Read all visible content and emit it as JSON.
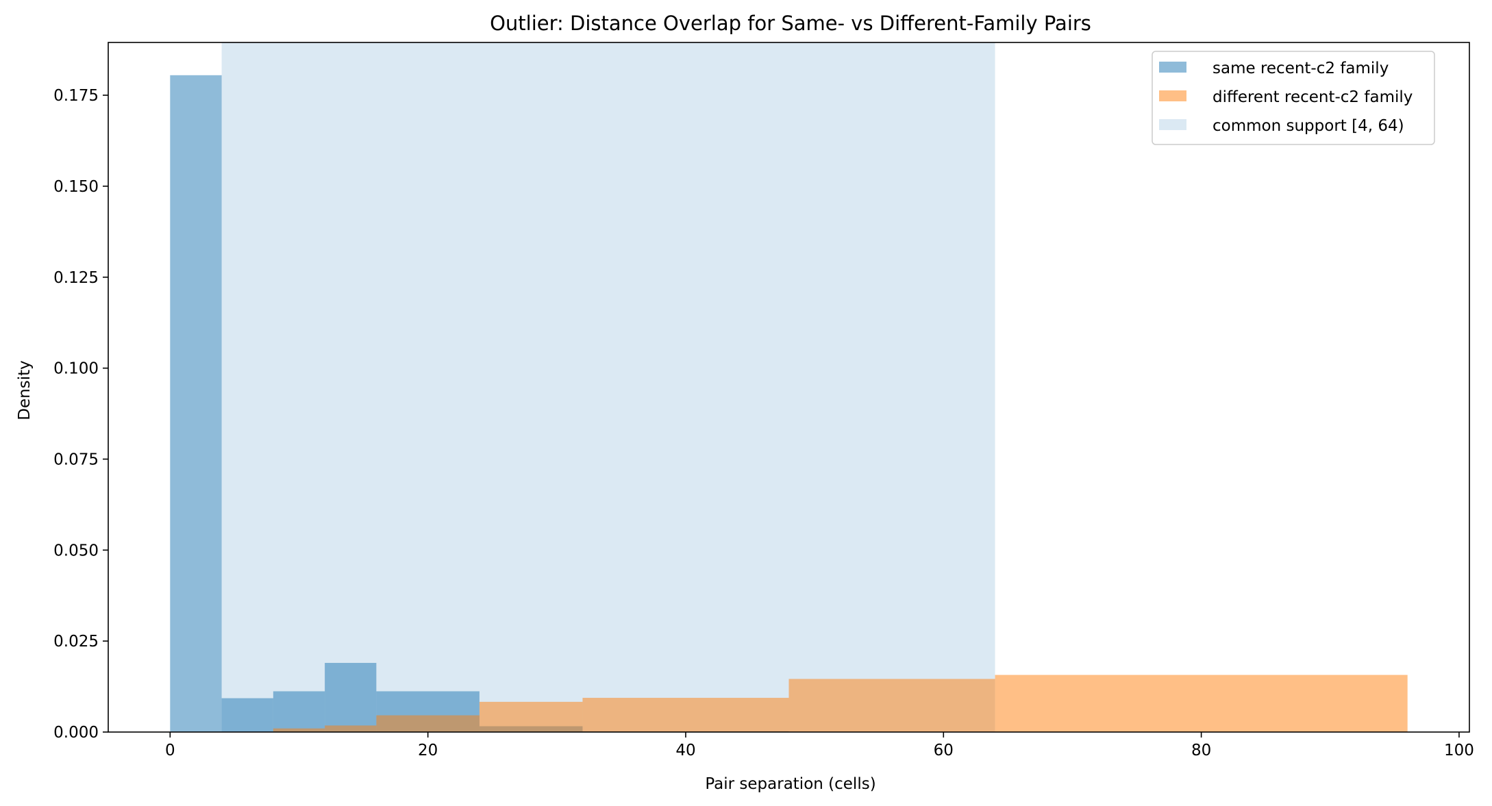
{
  "chart_data": {
    "type": "bar",
    "title": "Outlier: Distance Overlap for Same- vs Different-Family Pairs",
    "xlabel": "Pair separation (cells)",
    "ylabel": "Density",
    "xlim": [
      -4.8,
      100.8
    ],
    "ylim": [
      0,
      0.1895
    ],
    "x_ticks": [
      0,
      20,
      40,
      60,
      80,
      100
    ],
    "y_ticks": [
      0.0,
      0.025,
      0.05,
      0.075,
      0.1,
      0.125,
      0.15,
      0.175
    ],
    "grid": false,
    "legend_position": "top-right",
    "shaded_region": {
      "name": "common support [4, 64)",
      "x_range": [
        4,
        64
      ],
      "color": "#dbe9f3"
    },
    "series": [
      {
        "name": "same recent-c2 family",
        "color": "#1f77b4",
        "opacity": 0.5,
        "bins": [
          {
            "x0": 0,
            "x1": 4,
            "density": 0.1805
          },
          {
            "x0": 4,
            "x1": 8,
            "density": 0.0093
          },
          {
            "x0": 8,
            "x1": 12,
            "density": 0.0112
          },
          {
            "x0": 12,
            "x1": 16,
            "density": 0.019
          },
          {
            "x0": 16,
            "x1": 24,
            "density": 0.0112
          },
          {
            "x0": 24,
            "x1": 32,
            "density": 0.0016
          },
          {
            "x0": 32,
            "x1": 48,
            "density": 0.0002
          }
        ]
      },
      {
        "name": "different recent-c2 family",
        "color": "#ff7f0e",
        "opacity": 0.5,
        "bins": [
          {
            "x0": 8,
            "x1": 12,
            "density": 0.001
          },
          {
            "x0": 12,
            "x1": 16,
            "density": 0.0018
          },
          {
            "x0": 16,
            "x1": 24,
            "density": 0.0046
          },
          {
            "x0": 24,
            "x1": 32,
            "density": 0.0083
          },
          {
            "x0": 32,
            "x1": 48,
            "density": 0.0094
          },
          {
            "x0": 48,
            "x1": 64,
            "density": 0.0146
          },
          {
            "x0": 64,
            "x1": 96,
            "density": 0.0157
          }
        ]
      }
    ]
  }
}
